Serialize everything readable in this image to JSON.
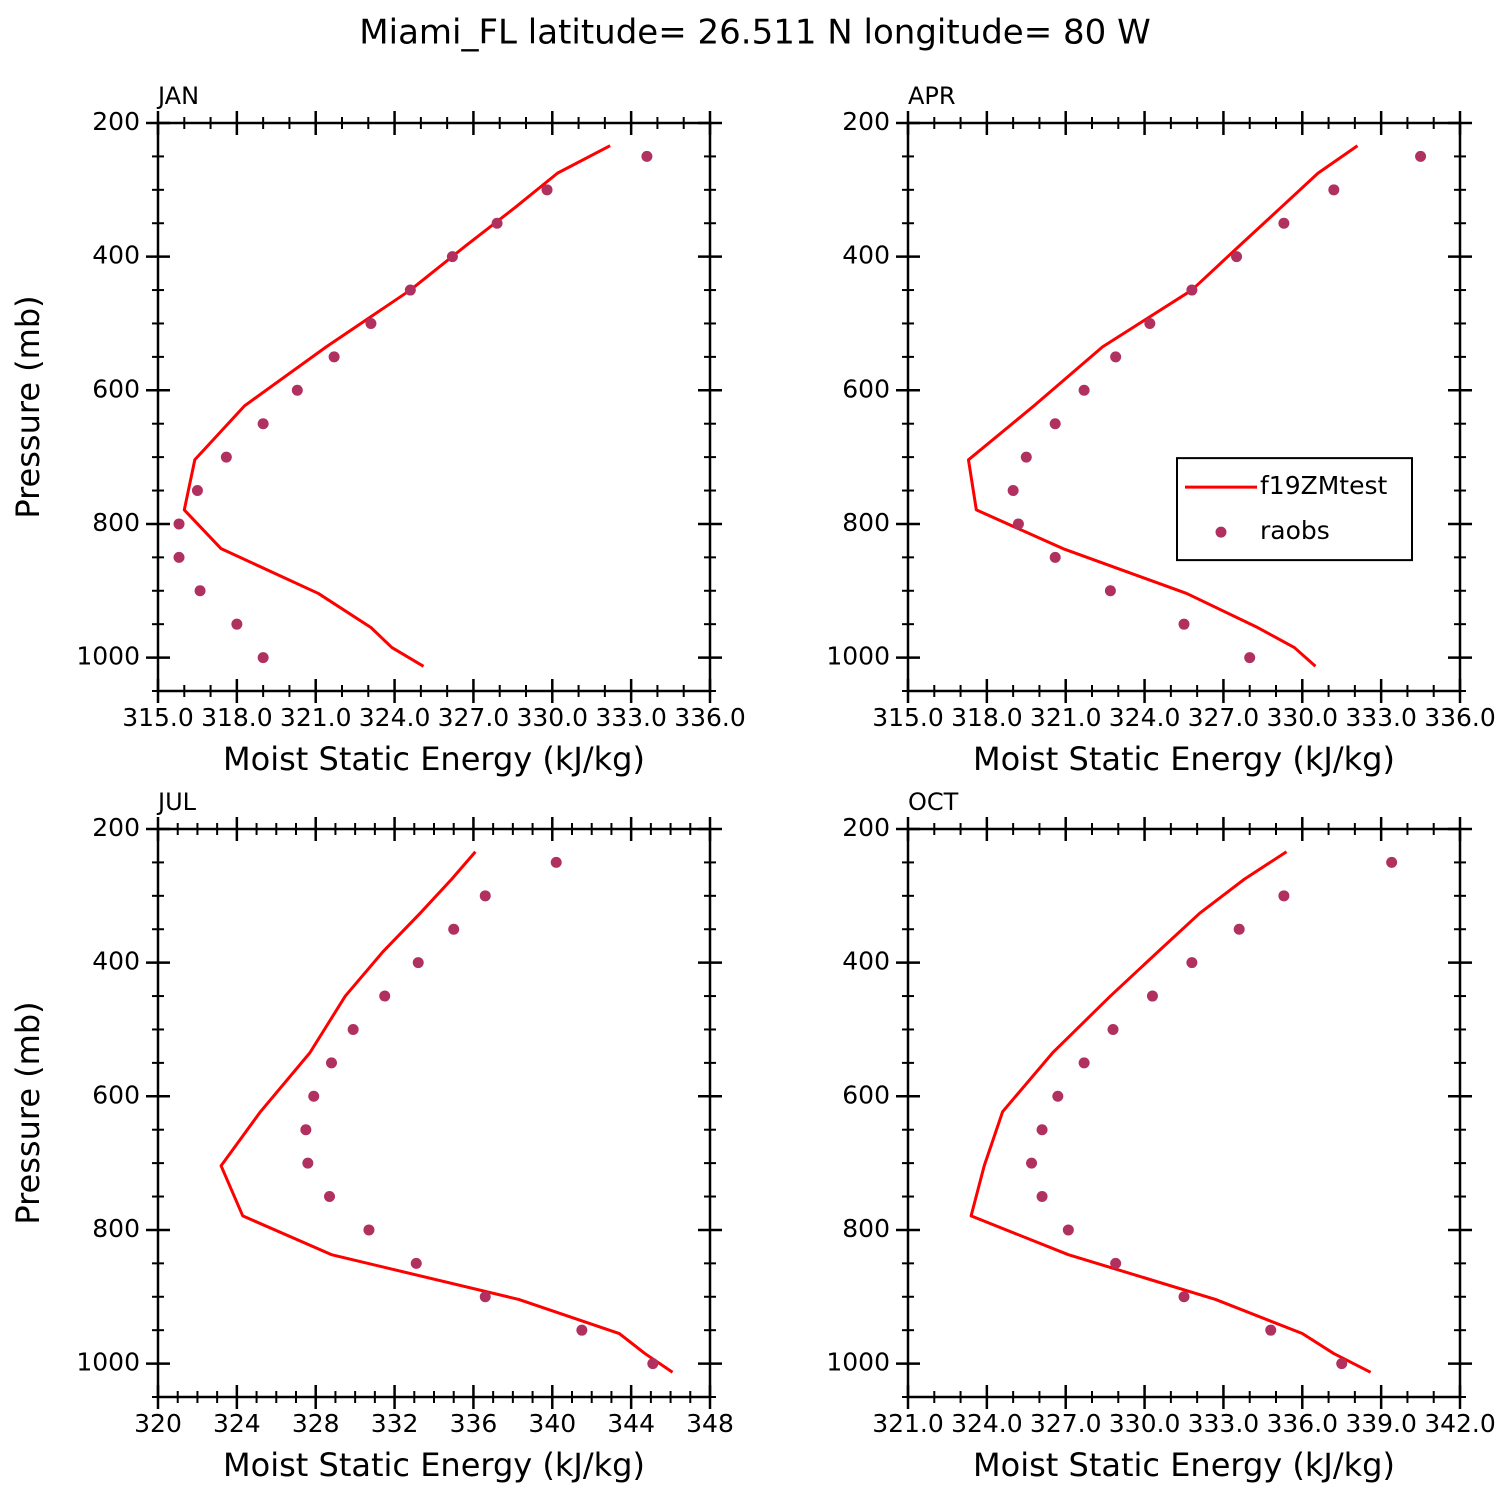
{
  "title": "Miami_FL  latitude= 26.511 N longitude= 80 W",
  "chart_data": [
    {
      "type": "profile",
      "title": "JAN",
      "xlabel": "Moist Static Energy (kJ/kg)",
      "ylabel": "Pressure (mb)",
      "xlim": [
        315,
        336
      ],
      "ylim": [
        1050,
        200
      ],
      "xticks": [
        {
          "value": 315,
          "label": "315.0"
        },
        {
          "value": 318,
          "label": "318.0"
        },
        {
          "value": 321,
          "label": "321.0"
        },
        {
          "value": 324,
          "label": "324.0"
        },
        {
          "value": 327,
          "label": "327.0"
        },
        {
          "value": 330,
          "label": "330.0"
        },
        {
          "value": 333,
          "label": "333.0"
        },
        {
          "value": 336,
          "label": "336.0"
        }
      ],
      "yticks": [
        200,
        400,
        600,
        800,
        1000
      ],
      "series": [
        {
          "name": "f19ZMtest",
          "type": "line",
          "color": "#ff0000",
          "x": [
            332.2,
            330.2,
            328.6,
            326.7,
            324.6,
            321.4,
            318.3,
            316.4,
            316.0,
            317.4,
            321.1,
            323.1,
            323.9,
            325.1
          ],
          "y": [
            234,
            275,
            326,
            384,
            450,
            535,
            623,
            704,
            779,
            837,
            904,
            955,
            985,
            1013
          ]
        },
        {
          "name": "raobs",
          "type": "scatter",
          "color": "#b03060",
          "x": [
            333.6,
            329.8,
            327.9,
            326.2,
            324.6,
            323.1,
            321.7,
            320.3,
            319.0,
            317.6,
            316.5,
            315.8,
            315.8,
            316.6,
            318.0,
            319.0
          ],
          "y": [
            250,
            300,
            350,
            400,
            450,
            500,
            550,
            600,
            650,
            700,
            750,
            800,
            850,
            900,
            950,
            1000
          ]
        }
      ]
    },
    {
      "type": "profile",
      "title": "APR",
      "xlabel": "Moist Static Energy (kJ/kg)",
      "legend": "center right",
      "xlim": [
        315,
        336
      ],
      "ylim": [
        1050,
        200
      ],
      "xticks": [
        {
          "value": 315,
          "label": "315.0"
        },
        {
          "value": 318,
          "label": "318.0"
        },
        {
          "value": 321,
          "label": "321.0"
        },
        {
          "value": 324,
          "label": "324.0"
        },
        {
          "value": 327,
          "label": "327.0"
        },
        {
          "value": 330,
          "label": "330.0"
        },
        {
          "value": 333,
          "label": "333.0"
        },
        {
          "value": 336,
          "label": "336.0"
        }
      ],
      "yticks": [
        200,
        400,
        600,
        800,
        1000
      ],
      "series": [
        {
          "name": "f19ZMtest",
          "type": "line",
          "color": "#ff0000",
          "x": [
            332.1,
            330.6,
            329.2,
            327.6,
            325.8,
            322.4,
            319.8,
            317.3,
            317.6,
            320.9,
            325.6,
            328.3,
            329.7,
            330.5
          ],
          "y": [
            234,
            275,
            326,
            384,
            450,
            535,
            623,
            704,
            779,
            837,
            904,
            955,
            985,
            1013
          ]
        },
        {
          "name": "raobs",
          "type": "scatter",
          "color": "#b03060",
          "x": [
            334.5,
            331.2,
            329.3,
            327.5,
            325.8,
            324.2,
            322.9,
            321.7,
            320.6,
            319.5,
            319.0,
            319.2,
            320.6,
            322.7,
            325.5,
            328.0
          ],
          "y": [
            250,
            300,
            350,
            400,
            450,
            500,
            550,
            600,
            650,
            700,
            750,
            800,
            850,
            900,
            950,
            1000
          ]
        }
      ]
    },
    {
      "type": "profile",
      "title": "JUL",
      "xlabel": "Moist Static Energy (kJ/kg)",
      "ylabel": "Pressure (mb)",
      "xlim": [
        320,
        348
      ],
      "ylim": [
        1050,
        200
      ],
      "xticks": [
        320,
        324,
        328,
        332,
        336,
        340,
        344,
        348
      ],
      "yticks": [
        200,
        400,
        600,
        800,
        1000
      ],
      "series": [
        {
          "name": "f19ZMtest",
          "type": "line",
          "color": "#ff0000",
          "x": [
            336.1,
            334.9,
            333.3,
            331.4,
            329.5,
            327.7,
            325.2,
            323.2,
            324.3,
            328.8,
            338.3,
            343.4,
            344.7,
            346.1
          ],
          "y": [
            234,
            275,
            326,
            384,
            450,
            535,
            623,
            704,
            779,
            837,
            904,
            955,
            985,
            1013
          ]
        },
        {
          "name": "raobs",
          "type": "scatter",
          "color": "#b03060",
          "x": [
            340.2,
            336.6,
            335.0,
            333.2,
            331.5,
            329.9,
            328.8,
            327.9,
            327.5,
            327.6,
            328.7,
            330.7,
            333.1,
            336.6,
            341.5,
            345.1
          ],
          "y": [
            250,
            300,
            350,
            400,
            450,
            500,
            550,
            600,
            650,
            700,
            750,
            800,
            850,
            900,
            950,
            1000
          ]
        }
      ]
    },
    {
      "type": "profile",
      "title": "OCT",
      "xlabel": "Moist Static Energy (kJ/kg)",
      "xlim": [
        321,
        342
      ],
      "ylim": [
        1050,
        200
      ],
      "xticks": [
        {
          "value": 321,
          "label": "321.0"
        },
        {
          "value": 324,
          "label": "324.0"
        },
        {
          "value": 327,
          "label": "327.0"
        },
        {
          "value": 330,
          "label": "330.0"
        },
        {
          "value": 333,
          "label": "333.0"
        },
        {
          "value": 336,
          "label": "336.0"
        },
        {
          "value": 339,
          "label": "339.0"
        },
        {
          "value": 342,
          "label": "342.0"
        }
      ],
      "yticks": [
        200,
        400,
        600,
        800,
        1000
      ],
      "series": [
        {
          "name": "f19ZMtest",
          "type": "line",
          "color": "#ff0000",
          "x": [
            335.4,
            333.8,
            332.1,
            330.5,
            328.7,
            326.5,
            324.6,
            323.9,
            323.4,
            327.1,
            332.7,
            336.0,
            337.2,
            338.6
          ],
          "y": [
            234,
            275,
            326,
            384,
            450,
            535,
            623,
            704,
            779,
            837,
            904,
            955,
            985,
            1013
          ]
        },
        {
          "name": "raobs",
          "type": "scatter",
          "color": "#b03060",
          "x": [
            339.4,
            335.3,
            333.6,
            331.8,
            330.3,
            328.8,
            327.7,
            326.7,
            326.1,
            325.7,
            326.1,
            327.1,
            328.9,
            331.5,
            334.8,
            337.5
          ],
          "y": [
            250,
            300,
            350,
            400,
            450,
            500,
            550,
            600,
            650,
            700,
            750,
            800,
            850,
            900,
            950,
            1000
          ]
        }
      ]
    }
  ]
}
